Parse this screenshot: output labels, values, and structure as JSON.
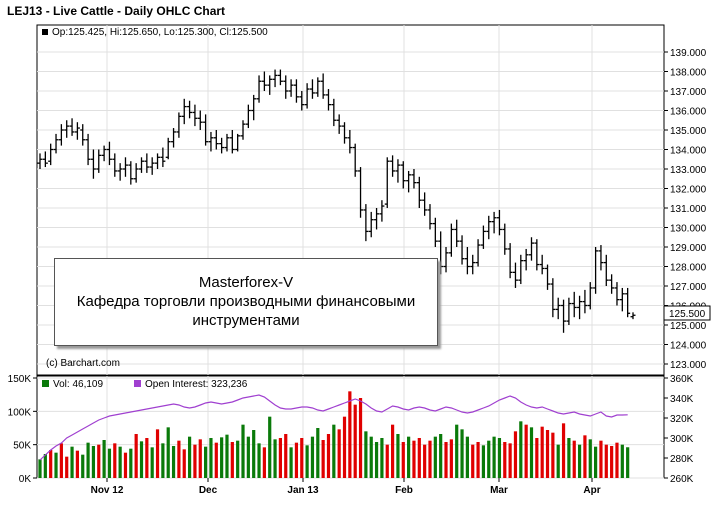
{
  "header": {
    "title": "LEJ13 - Live Cattle - Daily OHLC Chart"
  },
  "price_legend": "Op:125.425, Hi:125.650, Lo:125.300, Cl:125.500",
  "last_price_label": "125.500",
  "credit": "(c) Barchart.com",
  "overlay": {
    "line1": "Masterforex-V",
    "line2": "Кафедра торговли производными финансовыми",
    "line3": "инструментами"
  },
  "volume_legend": {
    "volume_label": "Vol: 46,109",
    "oi_label": "Open Interest: 323,236"
  },
  "colors": {
    "up": "#0a7a0a",
    "down": "#e00000",
    "oi_line": "#a040d0",
    "price_bar": "#000000",
    "grid": "#e0e0e0"
  },
  "chart_data": [
    {
      "type": "ohlc",
      "title": "LEJ13 - Live Cattle - Daily OHLC Chart",
      "ylim": [
        123,
        139.5
      ],
      "y_ticks": [
        "123.000",
        "124.000",
        "125.000",
        "126.000",
        "127.000",
        "128.000",
        "129.000",
        "130.000",
        "131.000",
        "132.000",
        "133.000",
        "134.000",
        "135.000",
        "136.000",
        "137.000",
        "138.000",
        "139.000"
      ],
      "x_ticks": [
        "Nov 12",
        "Dec",
        "Jan 13",
        "Feb",
        "Mar",
        "Apr"
      ],
      "last": {
        "open": 125.425,
        "high": 125.65,
        "low": 125.3,
        "close": 125.5
      },
      "series": [
        {
          "o": 133.3,
          "h": 133.8,
          "l": 133.0,
          "c": 133.5
        },
        {
          "o": 133.5,
          "h": 133.9,
          "l": 133.1,
          "c": 133.3
        },
        {
          "o": 133.4,
          "h": 134.3,
          "l": 133.2,
          "c": 134.0
        },
        {
          "o": 134.0,
          "h": 134.8,
          "l": 133.8,
          "c": 134.5
        },
        {
          "o": 134.5,
          "h": 135.3,
          "l": 134.2,
          "c": 135.0
        },
        {
          "o": 135.0,
          "h": 135.5,
          "l": 134.6,
          "c": 135.2
        },
        {
          "o": 135.2,
          "h": 135.6,
          "l": 134.7,
          "c": 134.9
        },
        {
          "o": 134.9,
          "h": 135.4,
          "l": 134.5,
          "c": 135.1
        },
        {
          "o": 135.0,
          "h": 135.3,
          "l": 134.2,
          "c": 134.5
        },
        {
          "o": 134.5,
          "h": 134.8,
          "l": 133.2,
          "c": 133.5
        },
        {
          "o": 133.5,
          "h": 134.0,
          "l": 132.5,
          "c": 133.0
        },
        {
          "o": 133.0,
          "h": 134.0,
          "l": 132.8,
          "c": 133.7
        },
        {
          "o": 133.7,
          "h": 134.2,
          "l": 133.4,
          "c": 134.0
        },
        {
          "o": 134.0,
          "h": 134.4,
          "l": 133.2,
          "c": 133.5
        },
        {
          "o": 133.5,
          "h": 133.8,
          "l": 132.6,
          "c": 132.9
        },
        {
          "o": 132.9,
          "h": 133.3,
          "l": 132.4,
          "c": 133.0
        },
        {
          "o": 133.0,
          "h": 133.6,
          "l": 132.6,
          "c": 133.2
        },
        {
          "o": 133.2,
          "h": 133.4,
          "l": 132.2,
          "c": 132.5
        },
        {
          "o": 132.5,
          "h": 133.3,
          "l": 132.3,
          "c": 133.0
        },
        {
          "o": 133.0,
          "h": 133.6,
          "l": 132.8,
          "c": 133.4
        },
        {
          "o": 133.4,
          "h": 133.8,
          "l": 132.8,
          "c": 133.1
        },
        {
          "o": 133.1,
          "h": 133.6,
          "l": 132.7,
          "c": 133.3
        },
        {
          "o": 133.3,
          "h": 133.8,
          "l": 133.0,
          "c": 133.6
        },
        {
          "o": 133.6,
          "h": 134.1,
          "l": 133.1,
          "c": 133.4
        },
        {
          "o": 133.6,
          "h": 134.6,
          "l": 133.5,
          "c": 134.4
        },
        {
          "o": 134.4,
          "h": 135.1,
          "l": 134.1,
          "c": 134.9
        },
        {
          "o": 134.9,
          "h": 135.9,
          "l": 134.6,
          "c": 135.7
        },
        {
          "o": 135.7,
          "h": 136.6,
          "l": 135.3,
          "c": 136.2
        },
        {
          "o": 136.2,
          "h": 136.5,
          "l": 135.6,
          "c": 135.9
        },
        {
          "o": 135.9,
          "h": 136.3,
          "l": 135.2,
          "c": 135.6
        },
        {
          "o": 135.6,
          "h": 136.0,
          "l": 135.0,
          "c": 135.4
        },
        {
          "o": 135.4,
          "h": 135.8,
          "l": 134.2,
          "c": 134.4
        },
        {
          "o": 134.4,
          "h": 134.9,
          "l": 133.9,
          "c": 134.6
        },
        {
          "o": 134.6,
          "h": 135.0,
          "l": 134.0,
          "c": 134.3
        },
        {
          "o": 134.3,
          "h": 134.6,
          "l": 133.8,
          "c": 134.1
        },
        {
          "o": 134.1,
          "h": 134.8,
          "l": 133.9,
          "c": 134.6
        },
        {
          "o": 134.6,
          "h": 135.0,
          "l": 133.8,
          "c": 134.0
        },
        {
          "o": 134.0,
          "h": 134.8,
          "l": 133.9,
          "c": 134.7
        },
        {
          "o": 134.7,
          "h": 135.5,
          "l": 134.5,
          "c": 135.3
        },
        {
          "o": 135.3,
          "h": 136.3,
          "l": 135.1,
          "c": 136.0
        },
        {
          "o": 136.0,
          "h": 136.8,
          "l": 135.5,
          "c": 136.6
        },
        {
          "o": 136.6,
          "h": 137.8,
          "l": 136.4,
          "c": 137.5
        },
        {
          "o": 137.5,
          "h": 138.0,
          "l": 137.0,
          "c": 137.3
        },
        {
          "o": 137.3,
          "h": 137.8,
          "l": 136.8,
          "c": 137.6
        },
        {
          "o": 137.6,
          "h": 138.1,
          "l": 137.2,
          "c": 137.8
        },
        {
          "o": 137.8,
          "h": 138.1,
          "l": 137.3,
          "c": 137.5
        },
        {
          "o": 137.5,
          "h": 137.8,
          "l": 136.6,
          "c": 137.0
        },
        {
          "o": 137.0,
          "h": 137.6,
          "l": 136.7,
          "c": 137.3
        },
        {
          "o": 137.3,
          "h": 137.6,
          "l": 136.4,
          "c": 136.7
        },
        {
          "o": 136.7,
          "h": 137.0,
          "l": 136.0,
          "c": 136.3
        },
        {
          "o": 136.3,
          "h": 137.4,
          "l": 136.1,
          "c": 137.1
        },
        {
          "o": 137.1,
          "h": 137.6,
          "l": 136.6,
          "c": 136.9
        },
        {
          "o": 136.9,
          "h": 137.7,
          "l": 136.7,
          "c": 137.5
        },
        {
          "o": 137.5,
          "h": 137.9,
          "l": 136.6,
          "c": 136.8
        },
        {
          "o": 136.8,
          "h": 137.1,
          "l": 136.0,
          "c": 136.3
        },
        {
          "o": 136.3,
          "h": 136.6,
          "l": 135.2,
          "c": 135.5
        },
        {
          "o": 135.5,
          "h": 135.8,
          "l": 134.8,
          "c": 135.2
        },
        {
          "o": 135.2,
          "h": 135.4,
          "l": 134.3,
          "c": 134.6
        },
        {
          "o": 134.6,
          "h": 135.0,
          "l": 133.8,
          "c": 134.1
        },
        {
          "o": 134.1,
          "h": 134.3,
          "l": 132.6,
          "c": 132.9
        },
        {
          "o": 132.9,
          "h": 133.1,
          "l": 130.5,
          "c": 130.9
        },
        {
          "o": 130.9,
          "h": 131.2,
          "l": 129.3,
          "c": 129.8
        },
        {
          "o": 129.8,
          "h": 130.8,
          "l": 129.5,
          "c": 130.4
        },
        {
          "o": 130.4,
          "h": 131.0,
          "l": 129.9,
          "c": 130.7
        },
        {
          "o": 130.7,
          "h": 131.4,
          "l": 130.3,
          "c": 131.1
        },
        {
          "o": 131.2,
          "h": 133.6,
          "l": 131.0,
          "c": 133.4
        },
        {
          "o": 133.4,
          "h": 133.7,
          "l": 132.6,
          "c": 132.9
        },
        {
          "o": 132.9,
          "h": 133.5,
          "l": 132.3,
          "c": 133.2
        },
        {
          "o": 133.2,
          "h": 133.4,
          "l": 132.0,
          "c": 132.4
        },
        {
          "o": 132.4,
          "h": 132.9,
          "l": 131.8,
          "c": 132.7
        },
        {
          "o": 132.7,
          "h": 133.0,
          "l": 132.0,
          "c": 132.3
        },
        {
          "o": 132.3,
          "h": 132.6,
          "l": 131.0,
          "c": 131.4
        },
        {
          "o": 131.4,
          "h": 131.8,
          "l": 130.6,
          "c": 130.9
        },
        {
          "o": 130.9,
          "h": 131.2,
          "l": 129.9,
          "c": 130.2
        },
        {
          "o": 130.2,
          "h": 130.5,
          "l": 129.0,
          "c": 129.3
        },
        {
          "o": 129.3,
          "h": 129.8,
          "l": 127.6,
          "c": 128.0
        },
        {
          "o": 128.0,
          "h": 129.0,
          "l": 127.7,
          "c": 128.7
        },
        {
          "o": 128.7,
          "h": 130.2,
          "l": 128.5,
          "c": 129.9
        },
        {
          "o": 129.9,
          "h": 130.4,
          "l": 129.0,
          "c": 129.3
        },
        {
          "o": 129.3,
          "h": 129.6,
          "l": 128.1,
          "c": 128.4
        },
        {
          "o": 128.4,
          "h": 129.0,
          "l": 127.6,
          "c": 128.0
        },
        {
          "o": 128.0,
          "h": 128.6,
          "l": 127.6,
          "c": 128.2
        },
        {
          "o": 128.2,
          "h": 129.4,
          "l": 128.0,
          "c": 129.1
        },
        {
          "o": 129.1,
          "h": 130.1,
          "l": 128.9,
          "c": 129.8
        },
        {
          "o": 129.8,
          "h": 130.6,
          "l": 129.4,
          "c": 130.3
        },
        {
          "o": 130.3,
          "h": 130.8,
          "l": 129.7,
          "c": 130.5
        },
        {
          "o": 130.5,
          "h": 130.9,
          "l": 129.6,
          "c": 129.9
        },
        {
          "o": 129.9,
          "h": 130.2,
          "l": 128.6,
          "c": 128.9
        },
        {
          "o": 128.9,
          "h": 129.2,
          "l": 127.4,
          "c": 127.7
        },
        {
          "o": 127.7,
          "h": 128.2,
          "l": 126.9,
          "c": 127.3
        },
        {
          "o": 127.3,
          "h": 128.6,
          "l": 127.1,
          "c": 128.3
        },
        {
          "o": 128.3,
          "h": 128.9,
          "l": 127.8,
          "c": 128.6
        },
        {
          "o": 128.6,
          "h": 129.5,
          "l": 128.3,
          "c": 129.2
        },
        {
          "o": 129.2,
          "h": 129.4,
          "l": 127.8,
          "c": 128.1
        },
        {
          "o": 128.1,
          "h": 128.6,
          "l": 127.6,
          "c": 127.9
        },
        {
          "o": 127.9,
          "h": 128.1,
          "l": 126.8,
          "c": 127.1
        },
        {
          "o": 127.1,
          "h": 127.4,
          "l": 125.4,
          "c": 125.8
        },
        {
          "o": 125.8,
          "h": 126.4,
          "l": 125.3,
          "c": 126.0
        },
        {
          "o": 126.0,
          "h": 126.3,
          "l": 124.6,
          "c": 125.2
        },
        {
          "o": 125.2,
          "h": 126.4,
          "l": 125.0,
          "c": 126.1
        },
        {
          "o": 126.1,
          "h": 126.7,
          "l": 125.4,
          "c": 125.9
        },
        {
          "o": 125.9,
          "h": 126.5,
          "l": 125.3,
          "c": 126.2
        },
        {
          "o": 126.2,
          "h": 126.8,
          "l": 125.6,
          "c": 126.0
        },
        {
          "o": 126.0,
          "h": 127.2,
          "l": 125.8,
          "c": 126.9
        },
        {
          "o": 126.9,
          "h": 129.0,
          "l": 126.6,
          "c": 128.8
        },
        {
          "o": 128.8,
          "h": 129.1,
          "l": 127.8,
          "c": 128.2
        },
        {
          "o": 128.2,
          "h": 128.6,
          "l": 127.0,
          "c": 127.3
        },
        {
          "o": 127.3,
          "h": 127.6,
          "l": 126.6,
          "c": 126.9
        },
        {
          "o": 126.9,
          "h": 127.2,
          "l": 126.0,
          "c": 126.3
        },
        {
          "o": 126.3,
          "h": 126.9,
          "l": 125.7,
          "c": 126.6
        },
        {
          "o": 126.6,
          "h": 126.9,
          "l": 125.4,
          "c": 125.6
        },
        {
          "o": 125.425,
          "h": 125.65,
          "l": 125.3,
          "c": 125.5
        }
      ]
    },
    {
      "type": "bar+line",
      "y_ticks_left": [
        "0K",
        "50K",
        "100K",
        "150K"
      ],
      "y_ticks_right": [
        "260K",
        "280K",
        "300K",
        "320K",
        "340K",
        "360K"
      ],
      "volume_ylim": [
        0,
        150000
      ],
      "oi_ylim": [
        260000,
        360000
      ],
      "volume": [
        28000,
        36000,
        42000,
        38000,
        52000,
        32000,
        47000,
        41000,
        35000,
        53000,
        48000,
        50000,
        57000,
        44000,
        52000,
        47000,
        38000,
        44000,
        66000,
        55000,
        60000,
        46000,
        73000,
        52000,
        76000,
        48000,
        56000,
        43000,
        62000,
        50000,
        58000,
        47000,
        60000,
        53000,
        61000,
        65000,
        54000,
        56000,
        80000,
        62000,
        72000,
        52000,
        46000,
        92000,
        58000,
        60000,
        66000,
        46000,
        53000,
        60000,
        49000,
        62000,
        75000,
        57000,
        66000,
        80000,
        73000,
        92000,
        130000,
        110000,
        120000,
        70000,
        62000,
        54000,
        60000,
        50000,
        80000,
        66000,
        54000,
        62000,
        56000,
        60000,
        50000,
        56000,
        62000,
        66000,
        54000,
        58000,
        80000,
        73000,
        62000,
        50000,
        54000,
        49000,
        56000,
        62000,
        60000,
        54000,
        52000,
        70000,
        85000,
        80000,
        76000,
        60000,
        77000,
        72000,
        68000,
        50000,
        82000,
        60000,
        56000,
        50000,
        64000,
        58000,
        47000,
        56000,
        50000,
        48000,
        53000,
        50000,
        46109
      ],
      "volume_up_flags": [
        1,
        1,
        0,
        1,
        0,
        0,
        1,
        0,
        1,
        1,
        1,
        0,
        1,
        1,
        0,
        1,
        0,
        1,
        0,
        1,
        0,
        1,
        0,
        1,
        1,
        1,
        0,
        0,
        1,
        0,
        0,
        1,
        1,
        0,
        1,
        1,
        0,
        1,
        1,
        1,
        1,
        1,
        0,
        1,
        1,
        0,
        0,
        1,
        0,
        0,
        1,
        1,
        1,
        0,
        0,
        1,
        0,
        0,
        0,
        0,
        0,
        1,
        1,
        1,
        1,
        0,
        0,
        1,
        0,
        1,
        0,
        0,
        0,
        0,
        1,
        1,
        0,
        0,
        1,
        1,
        1,
        0,
        0,
        1,
        1,
        1,
        1,
        0,
        0,
        0,
        1,
        0,
        1,
        0,
        0,
        0,
        0,
        1,
        0,
        1,
        0,
        1,
        0,
        1,
        1,
        0,
        0,
        0,
        0,
        1,
        1
      ],
      "open_interest": [
        278000,
        283000,
        288000,
        292000,
        295000,
        300000,
        303000,
        306000,
        309000,
        312000,
        315000,
        318000,
        320000,
        322000,
        323000,
        324000,
        325000,
        326000,
        327000,
        328000,
        329000,
        330000,
        331000,
        332000,
        333000,
        334000,
        333000,
        331000,
        330000,
        331000,
        333000,
        335000,
        336000,
        335000,
        334000,
        335000,
        336000,
        338000,
        340000,
        341000,
        342000,
        343000,
        341000,
        337000,
        333000,
        330000,
        329000,
        329000,
        330000,
        331000,
        331000,
        330000,
        328000,
        327000,
        329000,
        331000,
        333000,
        335000,
        337000,
        339000,
        337000,
        334000,
        330000,
        327000,
        326000,
        329000,
        332000,
        331000,
        329000,
        328000,
        330000,
        331000,
        330000,
        328000,
        327000,
        329000,
        331000,
        330000,
        328000,
        326000,
        325000,
        326000,
        328000,
        330000,
        332000,
        335000,
        338000,
        340000,
        342000,
        340000,
        336000,
        333000,
        331000,
        330000,
        331000,
        329000,
        327000,
        325000,
        324000,
        325000,
        326000,
        324000,
        323000,
        322000,
        324000,
        326000,
        322000,
        321000,
        323000,
        323000,
        323236
      ]
    }
  ]
}
